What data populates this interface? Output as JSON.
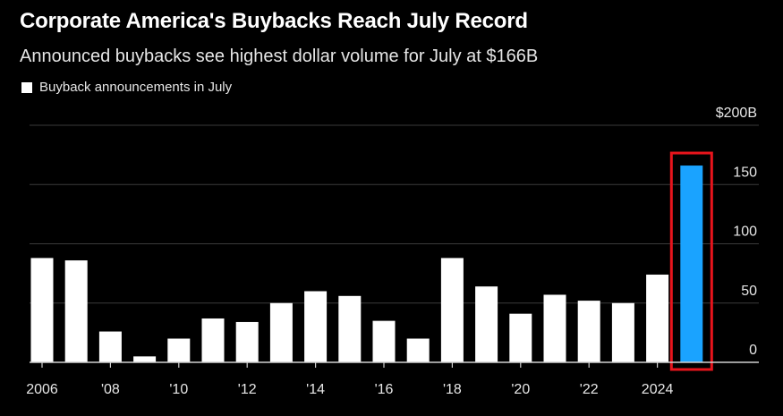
{
  "chart_data": {
    "type": "bar",
    "title": "Corporate America's Buybacks Reach July Record",
    "subtitle": "Announced buybacks see highest dollar volume for July at $166B",
    "legend": {
      "label": "Buyback announcements in July",
      "position": "top-left"
    },
    "categories": [
      "2006",
      "2007",
      "2008",
      "2009",
      "2010",
      "2011",
      "2012",
      "2013",
      "2014",
      "2015",
      "2016",
      "2017",
      "2018",
      "2019",
      "2020",
      "2021",
      "2022",
      "2023",
      "2024",
      "2025"
    ],
    "values": [
      88,
      86,
      26,
      5,
      20,
      37,
      34,
      50,
      60,
      56,
      35,
      20,
      88,
      64,
      41,
      57,
      52,
      50,
      74,
      166
    ],
    "x_tick_labels": [
      "2006",
      "'08",
      "'10",
      "'12",
      "'14",
      "'16",
      "'18",
      "'20",
      "'22",
      "2024"
    ],
    "y_ticks": [
      0,
      50,
      100,
      150,
      200
    ],
    "y_tick_labels": [
      "0",
      "50",
      "100",
      "150",
      "$200B"
    ],
    "ylim": [
      0,
      200
    ],
    "grid": true,
    "bar_color": "#ffffff",
    "highlight_color": "#1aa3ff",
    "highlight_box_color": "#e8141c",
    "highlight_index": 19,
    "background_color": "#000000",
    "gridline_color": "#3a3a3a"
  }
}
